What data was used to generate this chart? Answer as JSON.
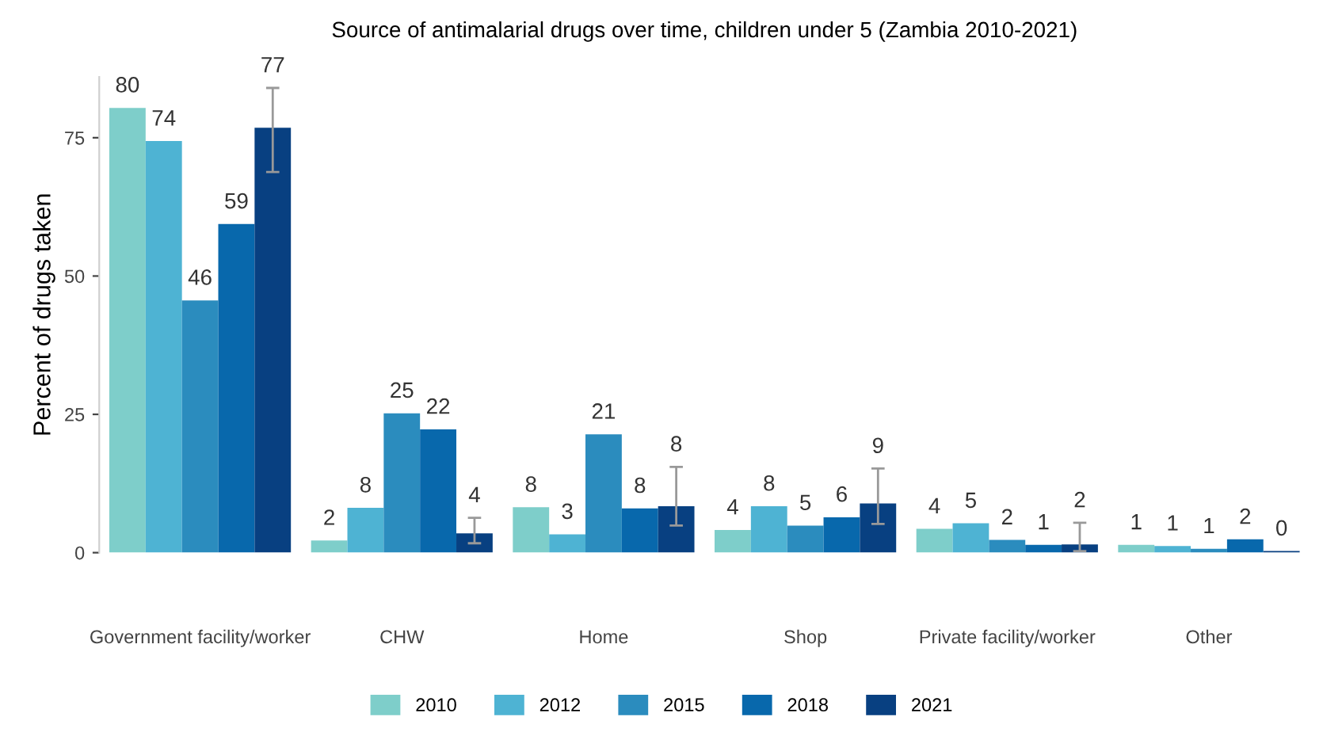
{
  "chart_data": {
    "type": "bar",
    "title": "Source of antimalarial drugs over time, children under 5 (Zambia 2010-2021)",
    "ylabel": "Percent of drugs taken",
    "categories": [
      "Government facility/worker",
      "CHW",
      "Home",
      "Shop",
      "Private facility/worker",
      "Other"
    ],
    "series": [
      {
        "name": "2010",
        "color": "#7ececa",
        "values": [
          80.4,
          2.2,
          8.2,
          4.1,
          4.3,
          1.4
        ],
        "value_labels": [
          "80",
          "2",
          "8",
          "4",
          "4",
          "1"
        ]
      },
      {
        "name": "2012",
        "color": "#4eb3d3",
        "values": [
          74.4,
          8.1,
          3.3,
          8.4,
          5.3,
          1.2
        ],
        "value_labels": [
          "74",
          "8",
          "3",
          "8",
          "5",
          "1"
        ]
      },
      {
        "name": "2015",
        "color": "#2b8cbe",
        "values": [
          45.6,
          25.2,
          21.4,
          4.9,
          2.3,
          0.7
        ],
        "value_labels": [
          "46",
          "25",
          "21",
          "5",
          "2",
          "1"
        ]
      },
      {
        "name": "2018",
        "color": "#0868ac",
        "values": [
          59.4,
          22.3,
          8.0,
          6.4,
          1.4,
          2.4
        ],
        "value_labels": [
          "59",
          "22",
          "8",
          "6",
          "1",
          "2"
        ]
      },
      {
        "name": "2021",
        "color": "#084081",
        "values": [
          76.8,
          3.5,
          8.4,
          8.9,
          1.5,
          0.3
        ],
        "value_labels": [
          "77",
          "4",
          "8",
          "9",
          "2",
          "0"
        ],
        "errors": [
          [
            68.8,
            84.0
          ],
          [
            1.7,
            6.3
          ],
          [
            4.9,
            15.5
          ],
          [
            5.2,
            15.2
          ],
          [
            0.3,
            5.4
          ],
          null
        ]
      }
    ],
    "ylim": [
      0,
      86
    ],
    "yticks": [
      0,
      25,
      50,
      75
    ],
    "grid": false,
    "legend": "bottom"
  }
}
